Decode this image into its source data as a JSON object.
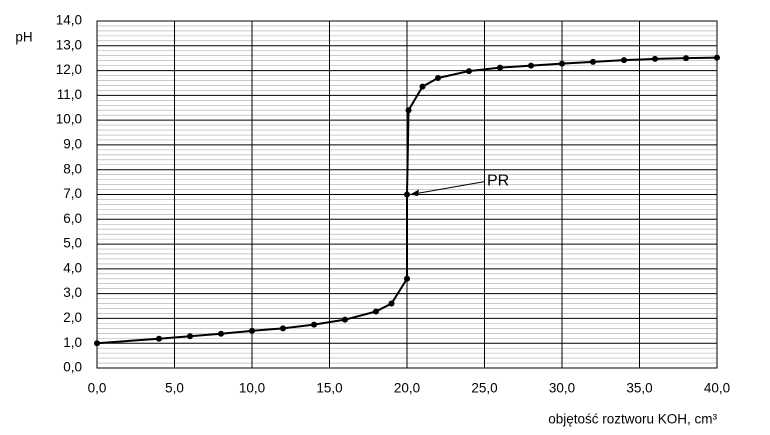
{
  "chart_data": {
    "type": "line",
    "x_label": "objętość roztworu KOH, cm³",
    "y_label": "pH",
    "series": [
      {
        "name": "pH",
        "color": "#000000",
        "x": [
          0,
          4,
          6,
          8,
          10,
          12,
          14,
          16,
          18,
          19,
          20,
          20,
          20.1,
          21,
          22,
          24,
          26,
          28,
          30,
          32,
          34,
          36,
          38,
          40
        ],
        "values": [
          1.0,
          1.18,
          1.28,
          1.38,
          1.5,
          1.6,
          1.75,
          1.95,
          2.28,
          2.6,
          3.6,
          7.0,
          10.4,
          11.35,
          11.7,
          11.98,
          12.12,
          12.2,
          12.28,
          12.35,
          12.42,
          12.47,
          12.5,
          12.52
        ]
      }
    ],
    "annotations": [
      {
        "text": "PR",
        "x": 20,
        "y": 7.0
      }
    ],
    "xlim": [
      0,
      40
    ],
    "ylim": [
      0,
      14
    ],
    "xticks": [
      {
        "value": 0,
        "label": "0,0"
      },
      {
        "value": 5,
        "label": "5,0"
      },
      {
        "value": 10,
        "label": "10,0"
      },
      {
        "value": 15,
        "label": "15,0"
      },
      {
        "value": 20,
        "label": "20,0"
      },
      {
        "value": 25,
        "label": "25,0"
      },
      {
        "value": 30,
        "label": "30,0"
      },
      {
        "value": 35,
        "label": "35,0"
      },
      {
        "value": 40,
        "label": "40,0"
      }
    ],
    "yticks": [
      {
        "value": 0,
        "label": "0,0"
      },
      {
        "value": 1,
        "label": "1,0"
      },
      {
        "value": 2,
        "label": "2,0"
      },
      {
        "value": 3,
        "label": "3,0"
      },
      {
        "value": 4,
        "label": "4,0"
      },
      {
        "value": 5,
        "label": "5,0"
      },
      {
        "value": 6,
        "label": "6,0"
      },
      {
        "value": 7,
        "label": "7,0"
      },
      {
        "value": 8,
        "label": "8,0"
      },
      {
        "value": 9,
        "label": "9,0"
      },
      {
        "value": 10,
        "label": "10,0"
      },
      {
        "value": 11,
        "label": "11,0"
      },
      {
        "value": 12,
        "label": "12,0"
      },
      {
        "value": 13,
        "label": "13,0"
      },
      {
        "value": 14,
        "label": "14,0"
      }
    ],
    "grid": true
  }
}
